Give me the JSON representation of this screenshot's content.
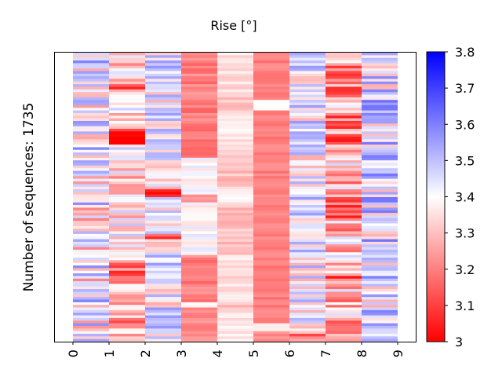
{
  "chart_data": {
    "type": "heatmap",
    "title": "Rise [°]",
    "ylabel": "Number of sequences: 1735",
    "xlabel": "",
    "x": [
      "0",
      "1",
      "2",
      "3",
      "4",
      "5",
      "6",
      "7",
      "8",
      "9"
    ],
    "colorbar": {
      "min": 3.0,
      "max": 3.8,
      "ticks": [
        "3",
        "3.1",
        "3.2",
        "3.3",
        "3.4",
        "3.5",
        "3.6",
        "3.7",
        "3.8"
      ],
      "colormap": "bwr_reversed",
      "low_color": "#ff0000",
      "mid_color": "#ffffff",
      "high_color": "#0000ff"
    },
    "column_bands": [
      {
        "x": "0",
        "segments": [],
        "base": 3.4,
        "noise": 0.2
      },
      {
        "x": "1",
        "segments": [
          [
            0.08,
            0.13,
            3.2
          ],
          [
            0.26,
            0.32,
            3.05
          ],
          [
            0.72,
            0.8,
            3.2
          ],
          [
            0.84,
            0.97,
            3.25
          ]
        ],
        "base": 3.35,
        "noise": 0.15
      },
      {
        "x": "2",
        "segments": [
          [
            0.46,
            0.5,
            3.15
          ],
          [
            0.63,
            0.67,
            3.2
          ]
        ],
        "base": 3.42,
        "noise": 0.15
      },
      {
        "x": "3",
        "segments": [
          [
            0.0,
            0.36,
            3.2
          ],
          [
            0.36,
            0.49,
            3.4
          ],
          [
            0.49,
            0.52,
            3.25
          ],
          [
            0.52,
            0.7,
            3.4
          ],
          [
            0.7,
            0.86,
            3.2
          ],
          [
            0.86,
            0.88,
            3.4
          ],
          [
            0.88,
            1.0,
            3.2
          ]
        ],
        "base": 3.4,
        "noise": 0.05
      },
      {
        "x": "4",
        "segments": [
          [
            0.0,
            0.15,
            3.35
          ],
          [
            0.15,
            0.2,
            3.3
          ],
          [
            0.2,
            0.35,
            3.36
          ],
          [
            0.35,
            0.46,
            3.3
          ],
          [
            0.46,
            0.53,
            3.38
          ],
          [
            0.53,
            0.7,
            3.3
          ],
          [
            0.7,
            0.86,
            3.35
          ],
          [
            0.86,
            0.89,
            3.3
          ],
          [
            0.89,
            1.0,
            3.36
          ]
        ],
        "base": 3.35,
        "noise": 0.04
      },
      {
        "x": "5",
        "segments": [
          [
            0.0,
            0.16,
            3.2
          ],
          [
            0.16,
            0.2,
            3.4
          ],
          [
            0.2,
            0.94,
            3.2
          ],
          [
            0.94,
            0.96,
            3.38
          ],
          [
            0.96,
            1.0,
            3.22
          ]
        ],
        "base": 3.2,
        "noise": 0.03
      },
      {
        "x": "6",
        "segments": [
          [
            0.48,
            0.56,
            3.5
          ],
          [
            0.96,
            1.0,
            3.2
          ]
        ],
        "base": 3.42,
        "noise": 0.15
      },
      {
        "x": "7",
        "segments": [
          [
            0.0,
            0.15,
            3.25
          ],
          [
            0.22,
            0.33,
            3.2
          ],
          [
            0.48,
            0.58,
            3.15
          ],
          [
            0.76,
            0.82,
            3.2
          ]
        ],
        "base": 3.3,
        "noise": 0.18
      },
      {
        "x": "8",
        "segments": [],
        "base": 3.45,
        "noise": 0.18
      }
    ]
  }
}
